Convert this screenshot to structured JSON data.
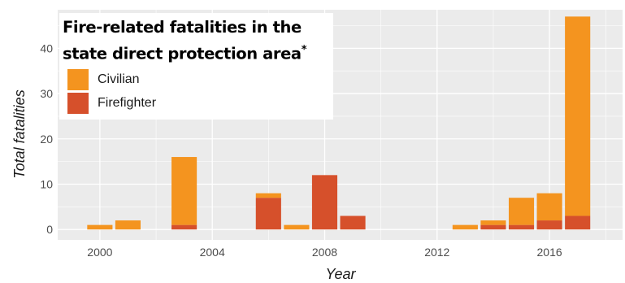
{
  "chart_data": {
    "type": "bar",
    "stacked": true,
    "title": "Fire-related fatalities in the state direct protection area*",
    "xlabel": "Year",
    "ylabel": "Total fatalities",
    "xlim": [
      1998.5,
      2018.6
    ],
    "ylim": [
      -2.3,
      48.5
    ],
    "xticks": [
      2000,
      2004,
      2008,
      2012,
      2016
    ],
    "yticks": [
      0,
      10,
      20,
      30,
      40
    ],
    "grid": true,
    "legend_position": "top-left",
    "x": [
      2000,
      2001,
      2003,
      2006,
      2007,
      2008,
      2009,
      2013,
      2014,
      2015,
      2016,
      2017
    ],
    "series": [
      {
        "name": "Firefighter",
        "color": "#d6502b",
        "values": [
          0,
          0,
          1,
          7,
          0,
          12,
          3,
          0,
          1,
          1,
          2,
          3
        ]
      },
      {
        "name": "Civilian",
        "color": "#f4941f",
        "values": [
          1,
          2,
          15,
          1,
          1,
          0,
          0,
          1,
          1,
          6,
          6,
          44
        ]
      }
    ]
  },
  "legend": {
    "title_line1": "Fire-related fatalities in the",
    "title_line2": "state direct protection area",
    "title_mark": "*",
    "items": [
      {
        "label": "Civilian",
        "color": "#f4941f"
      },
      {
        "label": "Firefighter",
        "color": "#d6502b"
      }
    ]
  },
  "colors": {
    "panel": "#ebebeb",
    "grid": "#ffffff"
  }
}
